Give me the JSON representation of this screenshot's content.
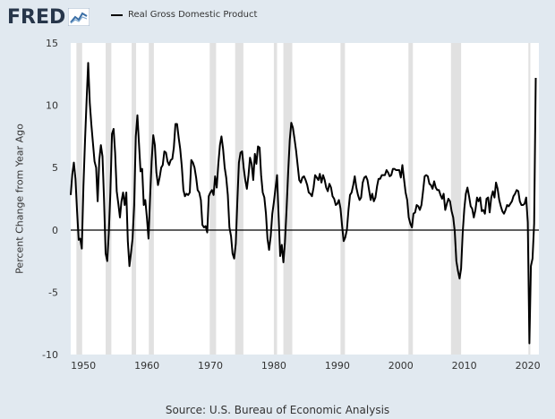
{
  "brand": {
    "logo_text": "FRED",
    "logo_icon": "line-chart-icon"
  },
  "legend": {
    "label": "Real Gross Domestic Product",
    "color": "#000000"
  },
  "source": "Source: U.S. Bureau of Economic Analysis",
  "chart_data": {
    "type": "line",
    "title": "",
    "ylabel": "Percent Change from Year Ago",
    "xlabel": "",
    "xlim": [
      1948.0,
      2021.75
    ],
    "ylim": [
      -10,
      15
    ],
    "x_ticks": [
      1950,
      1960,
      1970,
      1980,
      1990,
      2000,
      2010,
      2020
    ],
    "y_ticks": [
      -10,
      -5,
      0,
      5,
      10,
      15
    ],
    "grid": false,
    "legend_position": "top-left",
    "zero_line": true,
    "colors": {
      "background": "#e1e9f0",
      "plot_background": "#ffffff",
      "recession": "#e1e1e1",
      "line": "#000000"
    },
    "recessions": [
      [
        1948.9,
        1949.8
      ],
      [
        1953.5,
        1954.4
      ],
      [
        1957.6,
        1958.3
      ],
      [
        1960.3,
        1961.1
      ],
      [
        1969.9,
        1970.9
      ],
      [
        1973.9,
        1975.2
      ],
      [
        1980.0,
        1980.5
      ],
      [
        1981.5,
        1982.9
      ],
      [
        1990.5,
        1991.2
      ],
      [
        2001.2,
        2001.9
      ],
      [
        2007.9,
        2009.5
      ],
      [
        2020.1,
        2020.4
      ]
    ],
    "series": [
      {
        "name": "Real Gross Domestic Product",
        "points": [
          [
            1948.0,
            2.8
          ],
          [
            1948.25,
            4.5
          ],
          [
            1948.5,
            5.4
          ],
          [
            1948.75,
            4.1
          ],
          [
            1949.0,
            1.5
          ],
          [
            1949.25,
            -0.8
          ],
          [
            1949.5,
            -0.7
          ],
          [
            1949.75,
            -1.5
          ],
          [
            1950.0,
            3.5
          ],
          [
            1950.25,
            7.2
          ],
          [
            1950.5,
            10.3
          ],
          [
            1950.75,
            13.4
          ],
          [
            1951.0,
            10.2
          ],
          [
            1951.25,
            8.5
          ],
          [
            1951.5,
            7.0
          ],
          [
            1951.75,
            5.5
          ],
          [
            1952.0,
            5.0
          ],
          [
            1952.25,
            2.3
          ],
          [
            1952.5,
            5.6
          ],
          [
            1952.75,
            6.8
          ],
          [
            1953.0,
            5.9
          ],
          [
            1953.25,
            2.5
          ],
          [
            1953.5,
            -1.9
          ],
          [
            1953.75,
            -2.5
          ],
          [
            1954.0,
            -0.3
          ],
          [
            1954.25,
            3.0
          ],
          [
            1954.5,
            7.7
          ],
          [
            1954.75,
            8.1
          ],
          [
            1955.0,
            6.2
          ],
          [
            1955.25,
            3.1
          ],
          [
            1955.5,
            2.1
          ],
          [
            1955.75,
            1.0
          ],
          [
            1956.0,
            2.3
          ],
          [
            1956.25,
            3.0
          ],
          [
            1956.5,
            2.0
          ],
          [
            1956.75,
            3.0
          ],
          [
            1957.0,
            -0.9
          ],
          [
            1957.25,
            -2.9
          ],
          [
            1957.5,
            -1.8
          ],
          [
            1957.75,
            -0.7
          ],
          [
            1958.0,
            2.0
          ],
          [
            1958.25,
            7.5
          ],
          [
            1958.5,
            9.2
          ],
          [
            1958.75,
            7.0
          ],
          [
            1959.0,
            4.7
          ],
          [
            1959.25,
            4.9
          ],
          [
            1959.5,
            2.0
          ],
          [
            1959.75,
            2.4
          ],
          [
            1960.0,
            1.0
          ],
          [
            1960.25,
            -0.7
          ],
          [
            1960.5,
            2.5
          ],
          [
            1960.75,
            5.5
          ],
          [
            1961.0,
            7.6
          ],
          [
            1961.25,
            6.8
          ],
          [
            1961.5,
            4.6
          ],
          [
            1961.75,
            3.6
          ],
          [
            1962.0,
            4.2
          ],
          [
            1962.25,
            5.0
          ],
          [
            1962.5,
            5.2
          ],
          [
            1962.75,
            6.3
          ],
          [
            1963.0,
            6.2
          ],
          [
            1963.25,
            5.5
          ],
          [
            1963.5,
            5.2
          ],
          [
            1963.75,
            5.6
          ],
          [
            1964.0,
            5.7
          ],
          [
            1964.25,
            6.6
          ],
          [
            1964.5,
            8.5
          ],
          [
            1964.75,
            8.5
          ],
          [
            1965.0,
            7.4
          ],
          [
            1965.25,
            6.5
          ],
          [
            1965.5,
            5.1
          ],
          [
            1965.75,
            3.2
          ],
          [
            1966.0,
            2.7
          ],
          [
            1966.25,
            2.9
          ],
          [
            1966.5,
            2.8
          ],
          [
            1966.75,
            3.0
          ],
          [
            1967.0,
            5.6
          ],
          [
            1967.25,
            5.4
          ],
          [
            1967.5,
            5.0
          ],
          [
            1967.75,
            4.2
          ],
          [
            1968.0,
            3.2
          ],
          [
            1968.25,
            3.0
          ],
          [
            1968.5,
            2.4
          ],
          [
            1968.75,
            0.4
          ],
          [
            1969.0,
            0.2
          ],
          [
            1969.25,
            0.3
          ],
          [
            1969.5,
            -0.2
          ],
          [
            1969.75,
            2.7
          ],
          [
            1970.0,
            3.0
          ],
          [
            1970.25,
            3.2
          ],
          [
            1970.5,
            2.8
          ],
          [
            1970.75,
            4.3
          ],
          [
            1971.0,
            3.4
          ],
          [
            1971.25,
            5.3
          ],
          [
            1971.5,
            6.8
          ],
          [
            1971.75,
            7.5
          ],
          [
            1972.0,
            6.5
          ],
          [
            1972.25,
            5.0
          ],
          [
            1972.5,
            4.2
          ],
          [
            1972.75,
            2.8
          ],
          [
            1973.0,
            0.2
          ],
          [
            1973.25,
            -0.5
          ],
          [
            1973.5,
            -1.9
          ],
          [
            1973.75,
            -2.3
          ],
          [
            1974.0,
            -1.1
          ],
          [
            1974.25,
            2.4
          ],
          [
            1974.5,
            5.4
          ],
          [
            1974.75,
            6.2
          ],
          [
            1975.0,
            6.3
          ],
          [
            1975.25,
            5.0
          ],
          [
            1975.5,
            4.0
          ],
          [
            1975.75,
            3.3
          ],
          [
            1976.0,
            4.4
          ],
          [
            1976.25,
            5.8
          ],
          [
            1976.5,
            5.3
          ],
          [
            1976.75,
            4.0
          ],
          [
            1977.0,
            6.1
          ],
          [
            1977.25,
            5.3
          ],
          [
            1977.5,
            6.7
          ],
          [
            1977.75,
            6.6
          ],
          [
            1978.0,
            4.4
          ],
          [
            1978.25,
            3.0
          ],
          [
            1978.5,
            2.6
          ],
          [
            1978.75,
            1.3
          ],
          [
            1979.0,
            -0.7
          ],
          [
            1979.25,
            -1.6
          ],
          [
            1979.5,
            -0.5
          ],
          [
            1979.75,
            1.3
          ],
          [
            1980.0,
            2.2
          ],
          [
            1980.25,
            3.3
          ],
          [
            1980.5,
            4.4
          ],
          [
            1980.75,
            1.2
          ],
          [
            1981.0,
            -2.1
          ],
          [
            1981.25,
            -1.2
          ],
          [
            1981.5,
            -2.6
          ],
          [
            1981.75,
            -1.0
          ],
          [
            1982.0,
            1.6
          ],
          [
            1982.25,
            4.6
          ],
          [
            1982.5,
            7.2
          ],
          [
            1982.75,
            8.6
          ],
          [
            1983.0,
            8.2
          ],
          [
            1983.25,
            7.3
          ],
          [
            1983.5,
            6.4
          ],
          [
            1983.75,
            5.2
          ],
          [
            1984.0,
            4.0
          ],
          [
            1984.25,
            3.8
          ],
          [
            1984.5,
            4.2
          ],
          [
            1984.75,
            4.3
          ],
          [
            1985.0,
            4.0
          ],
          [
            1985.25,
            3.6
          ],
          [
            1985.5,
            3.0
          ],
          [
            1985.75,
            2.9
          ],
          [
            1986.0,
            2.7
          ],
          [
            1986.25,
            3.4
          ],
          [
            1986.5,
            4.4
          ],
          [
            1986.75,
            4.2
          ],
          [
            1987.0,
            4.0
          ],
          [
            1987.25,
            4.5
          ],
          [
            1987.5,
            3.8
          ],
          [
            1987.75,
            4.4
          ],
          [
            1988.0,
            4.0
          ],
          [
            1988.25,
            3.4
          ],
          [
            1988.5,
            3.1
          ],
          [
            1988.75,
            3.7
          ],
          [
            1989.0,
            3.4
          ],
          [
            1989.25,
            2.7
          ],
          [
            1989.5,
            2.5
          ],
          [
            1989.75,
            2.0
          ],
          [
            1990.0,
            2.1
          ],
          [
            1990.25,
            2.4
          ],
          [
            1990.5,
            1.7
          ],
          [
            1990.75,
            0.3
          ],
          [
            1991.0,
            -0.9
          ],
          [
            1991.25,
            -0.6
          ],
          [
            1991.5,
            0.0
          ],
          [
            1991.75,
            1.6
          ],
          [
            1992.0,
            2.8
          ],
          [
            1992.25,
            3.0
          ],
          [
            1992.5,
            3.6
          ],
          [
            1992.75,
            4.3
          ],
          [
            1993.0,
            3.4
          ],
          [
            1993.25,
            2.8
          ],
          [
            1993.5,
            2.4
          ],
          [
            1993.75,
            2.6
          ],
          [
            1994.0,
            3.8
          ],
          [
            1994.25,
            4.2
          ],
          [
            1994.5,
            4.3
          ],
          [
            1994.75,
            4.0
          ],
          [
            1995.0,
            3.2
          ],
          [
            1995.25,
            2.4
          ],
          [
            1995.5,
            2.9
          ],
          [
            1995.75,
            2.3
          ],
          [
            1996.0,
            2.6
          ],
          [
            1996.25,
            3.5
          ],
          [
            1996.5,
            4.1
          ],
          [
            1996.75,
            4.1
          ],
          [
            1997.0,
            4.4
          ],
          [
            1997.25,
            4.4
          ],
          [
            1997.5,
            4.4
          ],
          [
            1997.75,
            4.8
          ],
          [
            1998.0,
            4.6
          ],
          [
            1998.25,
            4.3
          ],
          [
            1998.5,
            4.4
          ],
          [
            1998.75,
            4.9
          ],
          [
            1999.0,
            4.9
          ],
          [
            1999.25,
            4.8
          ],
          [
            1999.5,
            4.8
          ],
          [
            1999.75,
            4.8
          ],
          [
            2000.0,
            4.2
          ],
          [
            2000.25,
            5.2
          ],
          [
            2000.5,
            4.1
          ],
          [
            2000.75,
            3.0
          ],
          [
            2001.0,
            2.4
          ],
          [
            2001.25,
            1.0
          ],
          [
            2001.5,
            0.5
          ],
          [
            2001.75,
            0.2
          ],
          [
            2002.0,
            1.3
          ],
          [
            2002.25,
            1.4
          ],
          [
            2002.5,
            2.0
          ],
          [
            2002.75,
            1.9
          ],
          [
            2003.0,
            1.6
          ],
          [
            2003.25,
            2.0
          ],
          [
            2003.5,
            3.1
          ],
          [
            2003.75,
            4.3
          ],
          [
            2004.0,
            4.4
          ],
          [
            2004.25,
            4.3
          ],
          [
            2004.5,
            3.7
          ],
          [
            2004.75,
            3.6
          ],
          [
            2005.0,
            3.3
          ],
          [
            2005.25,
            3.9
          ],
          [
            2005.5,
            3.4
          ],
          [
            2005.75,
            3.2
          ],
          [
            2006.0,
            3.2
          ],
          [
            2006.25,
            2.8
          ],
          [
            2006.5,
            2.5
          ],
          [
            2006.75,
            2.9
          ],
          [
            2007.0,
            1.6
          ],
          [
            2007.25,
            2.1
          ],
          [
            2007.5,
            2.5
          ],
          [
            2007.75,
            2.3
          ],
          [
            2008.0,
            1.5
          ],
          [
            2008.25,
            1.0
          ],
          [
            2008.5,
            -0.1
          ],
          [
            2008.75,
            -2.5
          ],
          [
            2009.0,
            -3.3
          ],
          [
            2009.25,
            -3.9
          ],
          [
            2009.5,
            -3.1
          ],
          [
            2009.75,
            -0.2
          ],
          [
            2010.0,
            1.7
          ],
          [
            2010.25,
            2.9
          ],
          [
            2010.5,
            3.4
          ],
          [
            2010.75,
            2.7
          ],
          [
            2011.0,
            1.9
          ],
          [
            2011.25,
            1.7
          ],
          [
            2011.5,
            1.0
          ],
          [
            2011.75,
            1.6
          ],
          [
            2012.0,
            2.6
          ],
          [
            2012.25,
            2.3
          ],
          [
            2012.5,
            2.6
          ],
          [
            2012.75,
            1.5
          ],
          [
            2013.0,
            1.6
          ],
          [
            2013.25,
            1.3
          ],
          [
            2013.5,
            2.5
          ],
          [
            2013.75,
            2.6
          ],
          [
            2014.0,
            1.4
          ],
          [
            2014.25,
            2.6
          ],
          [
            2014.5,
            3.1
          ],
          [
            2014.75,
            2.6
          ],
          [
            2015.0,
            3.8
          ],
          [
            2015.25,
            3.3
          ],
          [
            2015.5,
            2.4
          ],
          [
            2015.75,
            1.9
          ],
          [
            2016.0,
            1.5
          ],
          [
            2016.25,
            1.3
          ],
          [
            2016.5,
            1.6
          ],
          [
            2016.75,
            2.0
          ],
          [
            2017.0,
            1.9
          ],
          [
            2017.25,
            2.1
          ],
          [
            2017.5,
            2.3
          ],
          [
            2017.75,
            2.7
          ],
          [
            2018.0,
            2.9
          ],
          [
            2018.25,
            3.2
          ],
          [
            2018.5,
            3.1
          ],
          [
            2018.75,
            2.3
          ],
          [
            2019.0,
            2.0
          ],
          [
            2019.25,
            2.0
          ],
          [
            2019.5,
            2.1
          ],
          [
            2019.75,
            2.6
          ],
          [
            2020.0,
            0.6
          ],
          [
            2020.25,
            -9.1
          ],
          [
            2020.5,
            -2.9
          ],
          [
            2020.75,
            -2.3
          ],
          [
            2021.0,
            0.5
          ],
          [
            2021.25,
            12.2
          ]
        ]
      }
    ]
  }
}
